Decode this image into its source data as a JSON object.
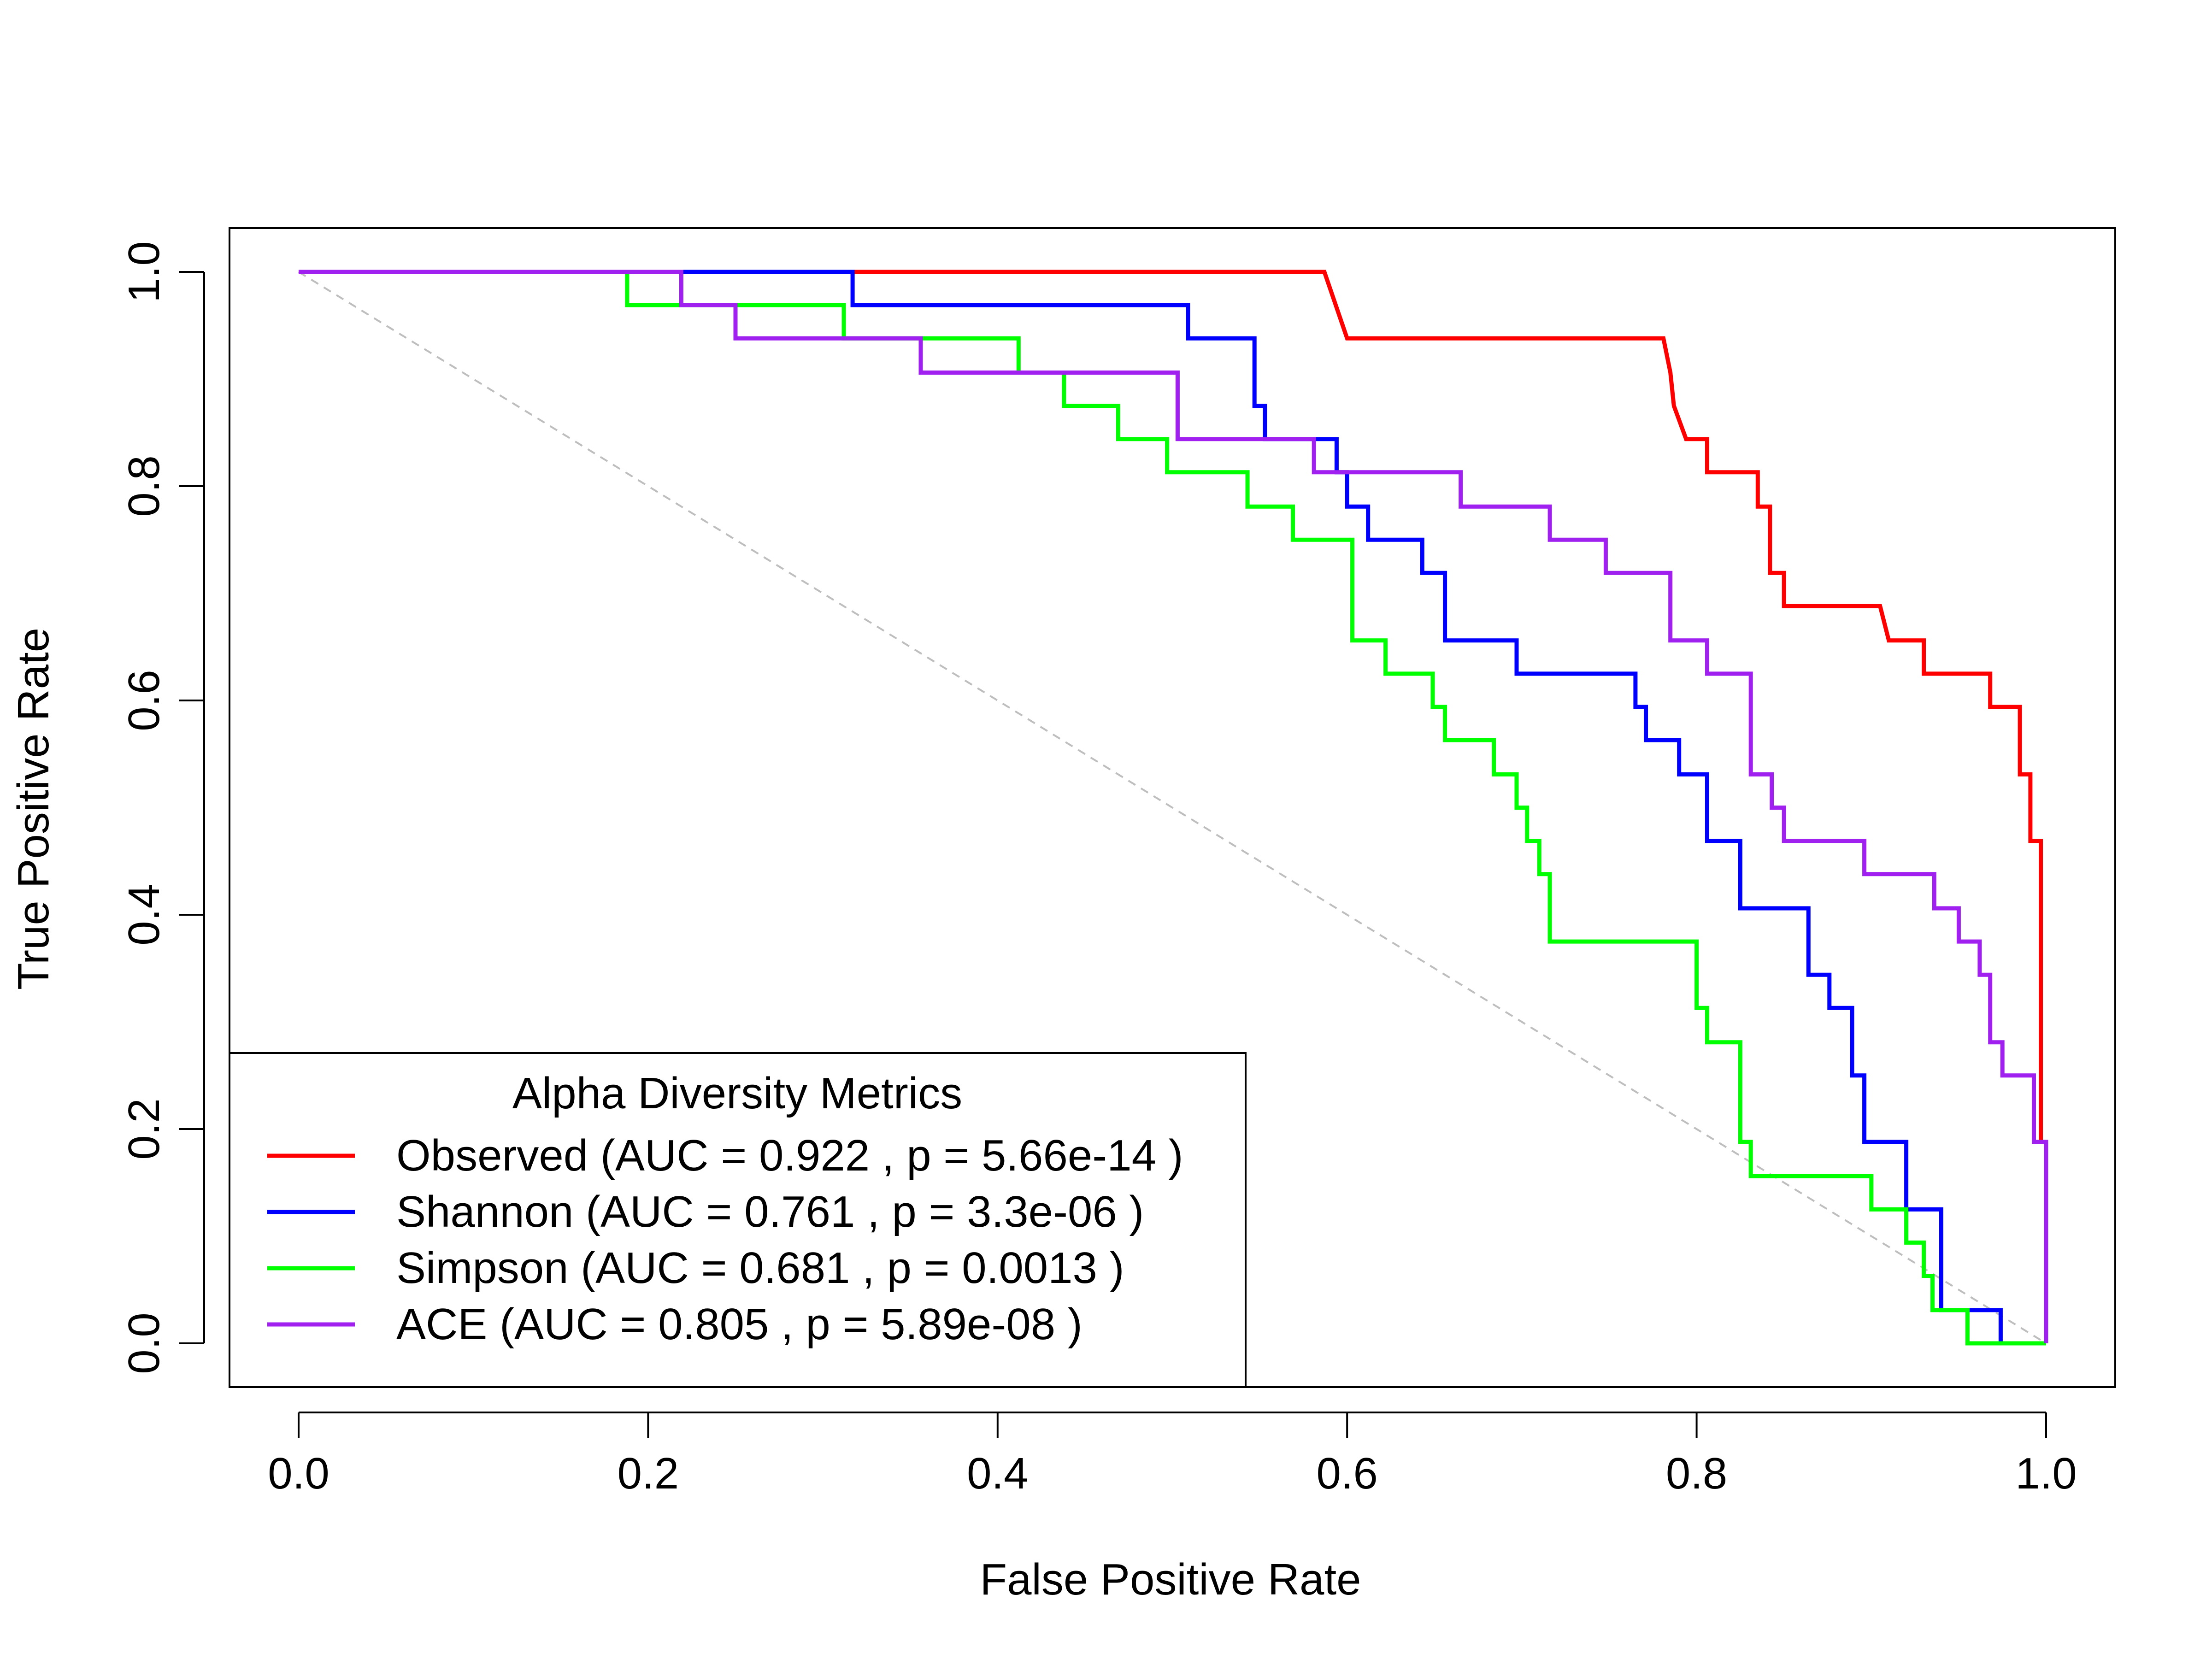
{
  "chart_data": {
    "type": "line",
    "title": "",
    "xlabel": "False Positive Rate",
    "ylabel": "True Positive Rate",
    "xlim": [
      0,
      1
    ],
    "ylim": [
      0,
      1
    ],
    "x_ticks": [
      "0.0",
      "0.2",
      "0.4",
      "0.6",
      "0.8",
      "1.0"
    ],
    "y_ticks": [
      "0.0",
      "0.2",
      "0.4",
      "0.6",
      "0.8",
      "1.0"
    ],
    "grid": false,
    "legend": {
      "title": "Alpha Diversity Metrics",
      "placement": "bottom-left",
      "entries": [
        "Observed (AUC = 0.922 , p = 5.66e-14 )",
        "Shannon (AUC = 0.761 , p = 3.3e-06 )",
        "Simpson (AUC = 0.681 , p = 0.0013 )",
        "ACE (AUC = 0.805 , p = 5.89e-08 )"
      ]
    },
    "reference_line": {
      "style": "dashed",
      "color": "#bebebe"
    },
    "series": [
      {
        "name": "Observed",
        "color": "#ff0000",
        "points": [
          [
            0,
            1
          ],
          [
            0.587,
            1
          ],
          [
            0.6,
            0.938
          ],
          [
            0.781,
            0.938
          ],
          [
            0.785,
            0.906
          ],
          [
            0.787,
            0.875
          ],
          [
            0.794,
            0.844
          ],
          [
            0.806,
            0.844
          ],
          [
            0.806,
            0.813
          ],
          [
            0.835,
            0.813
          ],
          [
            0.835,
            0.781
          ],
          [
            0.842,
            0.781
          ],
          [
            0.842,
            0.719
          ],
          [
            0.85,
            0.719
          ],
          [
            0.85,
            0.688
          ],
          [
            0.905,
            0.688
          ],
          [
            0.91,
            0.656
          ],
          [
            0.93,
            0.656
          ],
          [
            0.93,
            0.625
          ],
          [
            0.968,
            0.625
          ],
          [
            0.968,
            0.594
          ],
          [
            0.985,
            0.594
          ],
          [
            0.985,
            0.531
          ],
          [
            0.991,
            0.531
          ],
          [
            0.991,
            0.469
          ],
          [
            0.997,
            0.469
          ],
          [
            0.997,
            0.188
          ],
          [
            1,
            0.188
          ],
          [
            1,
            0
          ]
        ]
      },
      {
        "name": "Shannon",
        "color": "#0000ff",
        "points": [
          [
            0,
            1
          ],
          [
            0.317,
            1
          ],
          [
            0.317,
            0.969
          ],
          [
            0.509,
            0.969
          ],
          [
            0.509,
            0.938
          ],
          [
            0.547,
            0.938
          ],
          [
            0.547,
            0.875
          ],
          [
            0.553,
            0.875
          ],
          [
            0.553,
            0.844
          ],
          [
            0.594,
            0.844
          ],
          [
            0.594,
            0.813
          ],
          [
            0.6,
            0.813
          ],
          [
            0.6,
            0.781
          ],
          [
            0.612,
            0.781
          ],
          [
            0.612,
            0.75
          ],
          [
            0.643,
            0.75
          ],
          [
            0.643,
            0.719
          ],
          [
            0.656,
            0.719
          ],
          [
            0.656,
            0.656
          ],
          [
            0.697,
            0.656
          ],
          [
            0.697,
            0.625
          ],
          [
            0.765,
            0.625
          ],
          [
            0.765,
            0.594
          ],
          [
            0.771,
            0.594
          ],
          [
            0.771,
            0.563
          ],
          [
            0.79,
            0.563
          ],
          [
            0.79,
            0.531
          ],
          [
            0.806,
            0.531
          ],
          [
            0.806,
            0.469
          ],
          [
            0.825,
            0.469
          ],
          [
            0.825,
            0.406
          ],
          [
            0.864,
            0.406
          ],
          [
            0.864,
            0.344
          ],
          [
            0.876,
            0.344
          ],
          [
            0.876,
            0.313
          ],
          [
            0.889,
            0.313
          ],
          [
            0.889,
            0.25
          ],
          [
            0.896,
            0.25
          ],
          [
            0.896,
            0.188
          ],
          [
            0.92,
            0.188
          ],
          [
            0.92,
            0.125
          ],
          [
            0.94,
            0.125
          ],
          [
            0.94,
            0.031
          ],
          [
            0.974,
            0.031
          ],
          [
            0.974,
            0
          ],
          [
            1,
            0
          ]
        ]
      },
      {
        "name": "Simpson",
        "color": "#00ff00",
        "points": [
          [
            0,
            1
          ],
          [
            0.188,
            1
          ],
          [
            0.188,
            0.969
          ],
          [
            0.312,
            0.969
          ],
          [
            0.312,
            0.938
          ],
          [
            0.412,
            0.938
          ],
          [
            0.412,
            0.906
          ],
          [
            0.438,
            0.906
          ],
          [
            0.438,
            0.875
          ],
          [
            0.469,
            0.875
          ],
          [
            0.469,
            0.844
          ],
          [
            0.497,
            0.844
          ],
          [
            0.497,
            0.813
          ],
          [
            0.543,
            0.813
          ],
          [
            0.543,
            0.781
          ],
          [
            0.569,
            0.781
          ],
          [
            0.569,
            0.75
          ],
          [
            0.603,
            0.75
          ],
          [
            0.603,
            0.656
          ],
          [
            0.622,
            0.656
          ],
          [
            0.622,
            0.625
          ],
          [
            0.649,
            0.625
          ],
          [
            0.649,
            0.594
          ],
          [
            0.656,
            0.594
          ],
          [
            0.656,
            0.563
          ],
          [
            0.684,
            0.563
          ],
          [
            0.684,
            0.531
          ],
          [
            0.697,
            0.531
          ],
          [
            0.697,
            0.5
          ],
          [
            0.703,
            0.5
          ],
          [
            0.703,
            0.469
          ],
          [
            0.71,
            0.469
          ],
          [
            0.71,
            0.438
          ],
          [
            0.716,
            0.438
          ],
          [
            0.716,
            0.375
          ],
          [
            0.8,
            0.375
          ],
          [
            0.8,
            0.313
          ],
          [
            0.806,
            0.313
          ],
          [
            0.806,
            0.281
          ],
          [
            0.825,
            0.281
          ],
          [
            0.825,
            0.188
          ],
          [
            0.831,
            0.188
          ],
          [
            0.831,
            0.156
          ],
          [
            0.9,
            0.156
          ],
          [
            0.9,
            0.125
          ],
          [
            0.92,
            0.125
          ],
          [
            0.92,
            0.094
          ],
          [
            0.93,
            0.094
          ],
          [
            0.93,
            0.063
          ],
          [
            0.935,
            0.063
          ],
          [
            0.935,
            0.031
          ],
          [
            0.955,
            0.031
          ],
          [
            0.955,
            0
          ],
          [
            1,
            0
          ]
        ]
      },
      {
        "name": "ACE",
        "color": "#a020f0",
        "points": [
          [
            0,
            1
          ],
          [
            0.219,
            1
          ],
          [
            0.219,
            0.969
          ],
          [
            0.25,
            0.969
          ],
          [
            0.25,
            0.938
          ],
          [
            0.356,
            0.938
          ],
          [
            0.356,
            0.906
          ],
          [
            0.503,
            0.906
          ],
          [
            0.503,
            0.844
          ],
          [
            0.581,
            0.844
          ],
          [
            0.581,
            0.813
          ],
          [
            0.665,
            0.813
          ],
          [
            0.665,
            0.781
          ],
          [
            0.716,
            0.781
          ],
          [
            0.716,
            0.75
          ],
          [
            0.748,
            0.75
          ],
          [
            0.748,
            0.719
          ],
          [
            0.785,
            0.719
          ],
          [
            0.785,
            0.656
          ],
          [
            0.806,
            0.656
          ],
          [
            0.806,
            0.625
          ],
          [
            0.831,
            0.625
          ],
          [
            0.831,
            0.531
          ],
          [
            0.843,
            0.531
          ],
          [
            0.843,
            0.5
          ],
          [
            0.85,
            0.5
          ],
          [
            0.85,
            0.469
          ],
          [
            0.896,
            0.469
          ],
          [
            0.896,
            0.438
          ],
          [
            0.936,
            0.438
          ],
          [
            0.936,
            0.406
          ],
          [
            0.95,
            0.406
          ],
          [
            0.95,
            0.375
          ],
          [
            0.962,
            0.375
          ],
          [
            0.962,
            0.344
          ],
          [
            0.968,
            0.344
          ],
          [
            0.968,
            0.281
          ],
          [
            0.975,
            0.281
          ],
          [
            0.975,
            0.25
          ],
          [
            0.993,
            0.25
          ],
          [
            0.993,
            0.188
          ],
          [
            1,
            0.188
          ],
          [
            1,
            0
          ]
        ]
      }
    ]
  }
}
